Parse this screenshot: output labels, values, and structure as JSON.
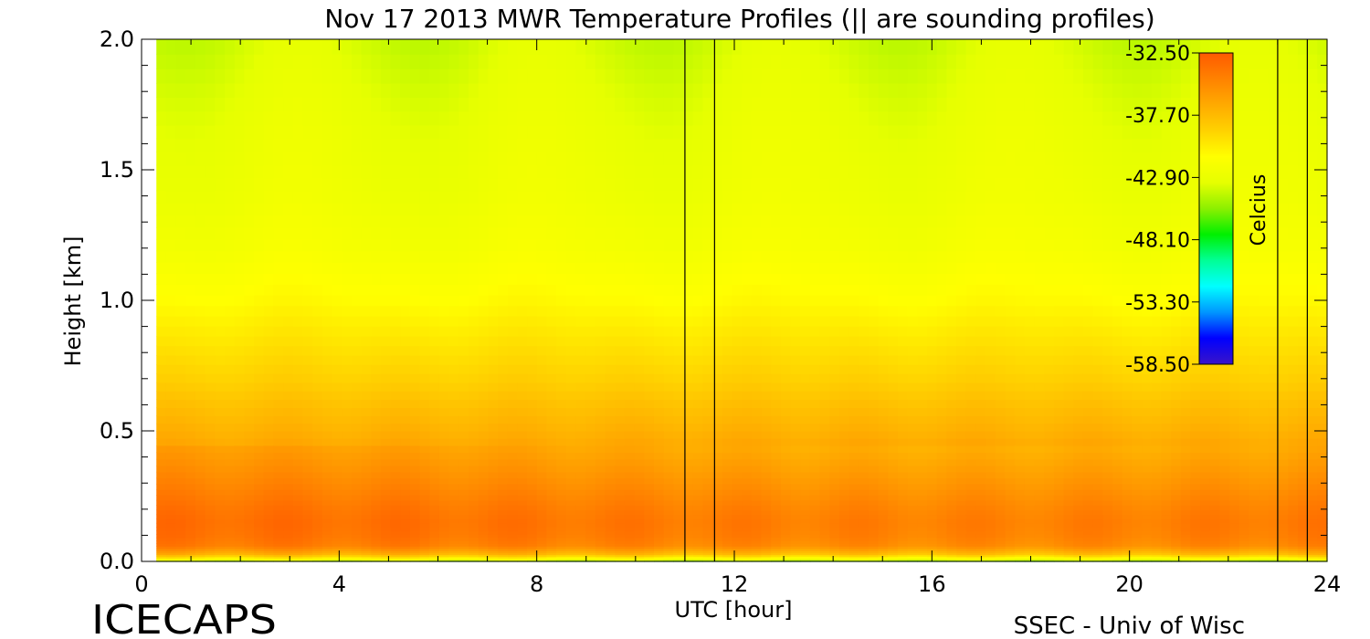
{
  "chart_data": {
    "type": "heatmap",
    "title": "Nov 17 2013 MWR Temperature Profiles (|| are sounding profiles)",
    "xlabel": "UTC [hour]",
    "ylabel": "Height [km]",
    "xlim": [
      0,
      24
    ],
    "ylim": [
      0,
      2.0
    ],
    "x_ticks": [
      "0",
      "4",
      "8",
      "12",
      "16",
      "20",
      "24"
    ],
    "y_ticks": [
      "0.0",
      "0.5",
      "1.0",
      "1.5",
      "2.0"
    ],
    "colorbar": {
      "label": "Celcius",
      "ticks": [
        "-32.50",
        "-37.70",
        "-42.90",
        "-48.10",
        "-53.30",
        "-58.50"
      ],
      "range": [
        -58.5,
        -32.5
      ]
    },
    "sounding_profiles_utc": [
      11.0,
      11.6,
      23.0,
      23.6
    ],
    "data_start_utc": 0.3,
    "heights_km": [
      0.0,
      0.01,
      0.03,
      0.06,
      0.1,
      0.15,
      0.2,
      0.25,
      0.3,
      0.4,
      0.5,
      0.6,
      0.7,
      0.8,
      1.0,
      1.2,
      1.4,
      1.6,
      1.8,
      2.0
    ],
    "mean_profile_celsius": [
      -46.5,
      -41.5,
      -37.5,
      -34.8,
      -34.2,
      -34.0,
      -34.3,
      -34.8,
      -35.3,
      -36.3,
      -37.2,
      -38.0,
      -38.9,
      -39.6,
      -41.0,
      -42.0,
      -42.6,
      -42.9,
      -43.3,
      -43.8
    ],
    "surface_warm_peaks": [
      {
        "utc": 2.0,
        "height_km": 0.12,
        "temperature_celsius": -33.0
      },
      {
        "utc": 2.8,
        "height_km": 0.12,
        "temperature_celsius": -33.2
      },
      {
        "utc": 5.0,
        "height_km": 0.15,
        "temperature_celsius": -33.8
      },
      {
        "utc": 17.0,
        "height_km": 0.18,
        "temperature_celsius": -34.0
      }
    ],
    "colorscale": [
      "#3a14c8",
      "#0000ff",
      "#0096ff",
      "#00ffff",
      "#00ff96",
      "#00f000",
      "#8cf000",
      "#e6ff00",
      "#ffff00",
      "#ffd200",
      "#ffaa00",
      "#ff8200",
      "#ff5a00"
    ]
  },
  "footer": {
    "left": "ICECAPS",
    "right": "SSEC - Univ of Wisc"
  }
}
